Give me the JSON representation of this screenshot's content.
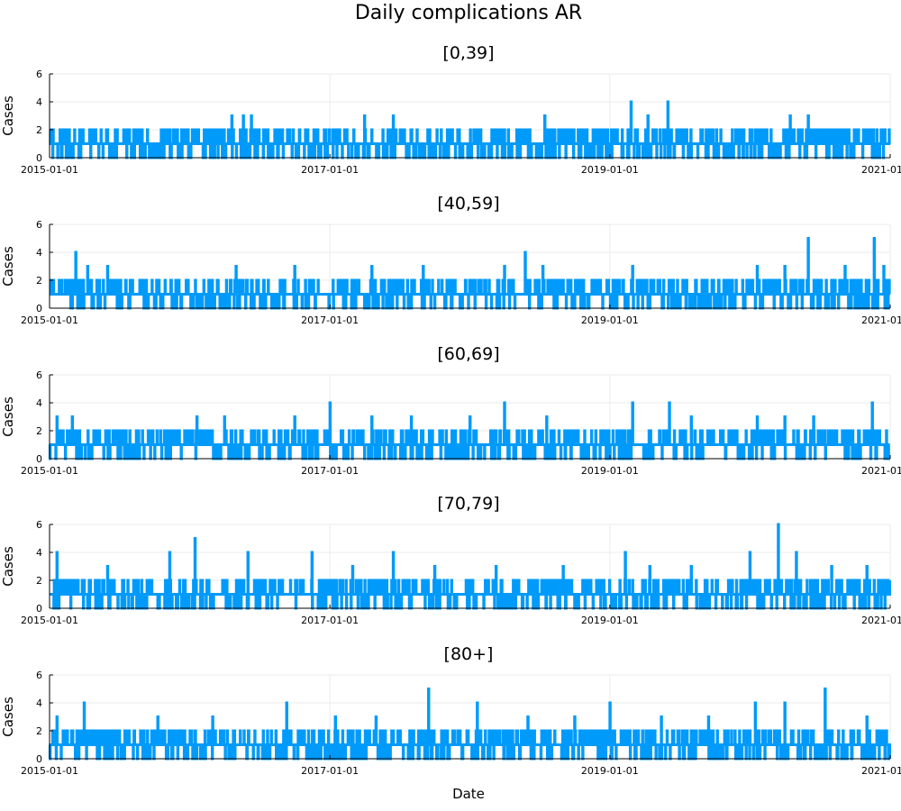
{
  "chart_data": {
    "type": "line",
    "title": "Daily complications AR",
    "xlabel": "Date",
    "ylabel": "Cases",
    "xlim": [
      "2015-01-01",
      "2021-01-01"
    ],
    "x_tick_labels": [
      "2015-01-01",
      "2017-01-01",
      "2019-01-01",
      "2021-01-01"
    ],
    "ylim": [
      0,
      6
    ],
    "y_tick_labels": [
      "0",
      "2",
      "4",
      "6"
    ],
    "grid": true,
    "line_color": "#009AFA",
    "panels": [
      {
        "title": "[0,39]",
        "date_range": [
          "2015-01-01",
          "2020-12-31"
        ],
        "peaks": [
          {
            "x": "2015-01-10",
            "y": 2
          },
          {
            "x": "2015-02-20",
            "y": 2
          },
          {
            "x": "2015-05-01",
            "y": 2
          },
          {
            "x": "2015-07-15",
            "y": 2
          },
          {
            "x": "2015-11-05",
            "y": 2
          },
          {
            "x": "2016-01-15",
            "y": 2
          },
          {
            "x": "2016-04-20",
            "y": 3
          },
          {
            "x": "2016-05-20",
            "y": 3
          },
          {
            "x": "2016-06-10",
            "y": 3
          },
          {
            "x": "2017-01-20",
            "y": 2
          },
          {
            "x": "2017-04-01",
            "y": 3
          },
          {
            "x": "2017-06-15",
            "y": 3
          },
          {
            "x": "2017-08-01",
            "y": 2
          },
          {
            "x": "2018-04-01",
            "y": 2
          },
          {
            "x": "2018-07-15",
            "y": 3
          },
          {
            "x": "2018-10-10",
            "y": 2
          },
          {
            "x": "2019-01-10",
            "y": 2
          },
          {
            "x": "2019-02-25",
            "y": 4
          },
          {
            "x": "2019-04-10",
            "y": 3
          },
          {
            "x": "2019-06-01",
            "y": 4
          },
          {
            "x": "2019-09-10",
            "y": 2
          },
          {
            "x": "2020-01-15",
            "y": 2
          },
          {
            "x": "2020-04-15",
            "y": 3
          },
          {
            "x": "2020-06-01",
            "y": 3
          },
          {
            "x": "2020-09-01",
            "y": 2
          },
          {
            "x": "2020-11-01",
            "y": 2
          }
        ]
      },
      {
        "title": "[40,59]",
        "date_range": [
          "2015-01-01",
          "2020-12-31"
        ],
        "peaks": [
          {
            "x": "2015-03-10",
            "y": 4
          },
          {
            "x": "2015-04-10",
            "y": 3
          },
          {
            "x": "2015-06-01",
            "y": 3
          },
          {
            "x": "2015-09-10",
            "y": 2
          },
          {
            "x": "2016-05-01",
            "y": 3
          },
          {
            "x": "2016-10-01",
            "y": 3
          },
          {
            "x": "2017-04-20",
            "y": 3
          },
          {
            "x": "2017-09-01",
            "y": 3
          },
          {
            "x": "2018-04-01",
            "y": 3
          },
          {
            "x": "2018-05-25",
            "y": 4
          },
          {
            "x": "2018-07-10",
            "y": 3
          },
          {
            "x": "2019-03-01",
            "y": 3
          },
          {
            "x": "2019-06-15",
            "y": 2
          },
          {
            "x": "2020-01-20",
            "y": 3
          },
          {
            "x": "2020-04-01",
            "y": 3
          },
          {
            "x": "2020-06-01",
            "y": 5
          },
          {
            "x": "2020-09-05",
            "y": 3
          },
          {
            "x": "2020-11-20",
            "y": 5
          },
          {
            "x": "2020-12-15",
            "y": 3
          }
        ]
      },
      {
        "title": "[60,69]",
        "date_range": [
          "2015-01-01",
          "2020-12-31"
        ],
        "peaks": [
          {
            "x": "2015-01-20",
            "y": 3
          },
          {
            "x": "2015-03-01",
            "y": 3
          },
          {
            "x": "2015-06-15",
            "y": 2
          },
          {
            "x": "2016-01-20",
            "y": 3
          },
          {
            "x": "2016-04-01",
            "y": 3
          },
          {
            "x": "2016-10-01",
            "y": 3
          },
          {
            "x": "2017-01-01",
            "y": 4
          },
          {
            "x": "2017-04-20",
            "y": 3
          },
          {
            "x": "2017-08-01",
            "y": 3
          },
          {
            "x": "2018-01-01",
            "y": 3
          },
          {
            "x": "2018-04-01",
            "y": 4
          },
          {
            "x": "2018-07-20",
            "y": 3
          },
          {
            "x": "2019-03-01",
            "y": 4
          },
          {
            "x": "2019-06-05",
            "y": 4
          },
          {
            "x": "2019-08-01",
            "y": 3
          },
          {
            "x": "2020-01-20",
            "y": 3
          },
          {
            "x": "2020-04-01",
            "y": 3
          },
          {
            "x": "2020-06-15",
            "y": 3
          },
          {
            "x": "2020-11-15",
            "y": 4
          }
        ]
      },
      {
        "title": "[70,79]",
        "date_range": [
          "2015-01-01",
          "2020-12-31"
        ],
        "peaks": [
          {
            "x": "2015-01-20",
            "y": 4
          },
          {
            "x": "2015-06-01",
            "y": 3
          },
          {
            "x": "2015-11-10",
            "y": 4
          },
          {
            "x": "2016-01-15",
            "y": 5
          },
          {
            "x": "2016-06-01",
            "y": 4
          },
          {
            "x": "2016-11-15",
            "y": 4
          },
          {
            "x": "2017-03-01",
            "y": 3
          },
          {
            "x": "2017-06-15",
            "y": 4
          },
          {
            "x": "2017-10-01",
            "y": 3
          },
          {
            "x": "2018-03-10",
            "y": 3
          },
          {
            "x": "2018-09-01",
            "y": 3
          },
          {
            "x": "2019-02-10",
            "y": 4
          },
          {
            "x": "2019-04-15",
            "y": 3
          },
          {
            "x": "2019-08-01",
            "y": 3
          },
          {
            "x": "2020-01-01",
            "y": 4
          },
          {
            "x": "2020-03-15",
            "y": 6
          },
          {
            "x": "2020-05-01",
            "y": 4
          },
          {
            "x": "2020-08-01",
            "y": 3
          },
          {
            "x": "2020-11-01",
            "y": 3
          }
        ]
      },
      {
        "title": "[80+]",
        "date_range": [
          "2015-01-01",
          "2020-12-31"
        ],
        "peaks": [
          {
            "x": "2015-01-20",
            "y": 3
          },
          {
            "x": "2015-04-01",
            "y": 4
          },
          {
            "x": "2015-10-10",
            "y": 3
          },
          {
            "x": "2016-03-01",
            "y": 3
          },
          {
            "x": "2016-09-10",
            "y": 4
          },
          {
            "x": "2017-01-15",
            "y": 3
          },
          {
            "x": "2017-05-01",
            "y": 3
          },
          {
            "x": "2017-09-15",
            "y": 5
          },
          {
            "x": "2018-01-20",
            "y": 4
          },
          {
            "x": "2018-06-01",
            "y": 3
          },
          {
            "x": "2018-10-01",
            "y": 3
          },
          {
            "x": "2019-01-01",
            "y": 4
          },
          {
            "x": "2019-05-15",
            "y": 3
          },
          {
            "x": "2019-09-15",
            "y": 3
          },
          {
            "x": "2020-01-15",
            "y": 4
          },
          {
            "x": "2020-04-01",
            "y": 4
          },
          {
            "x": "2020-07-15",
            "y": 5
          },
          {
            "x": "2020-11-01",
            "y": 3
          }
        ]
      }
    ]
  }
}
